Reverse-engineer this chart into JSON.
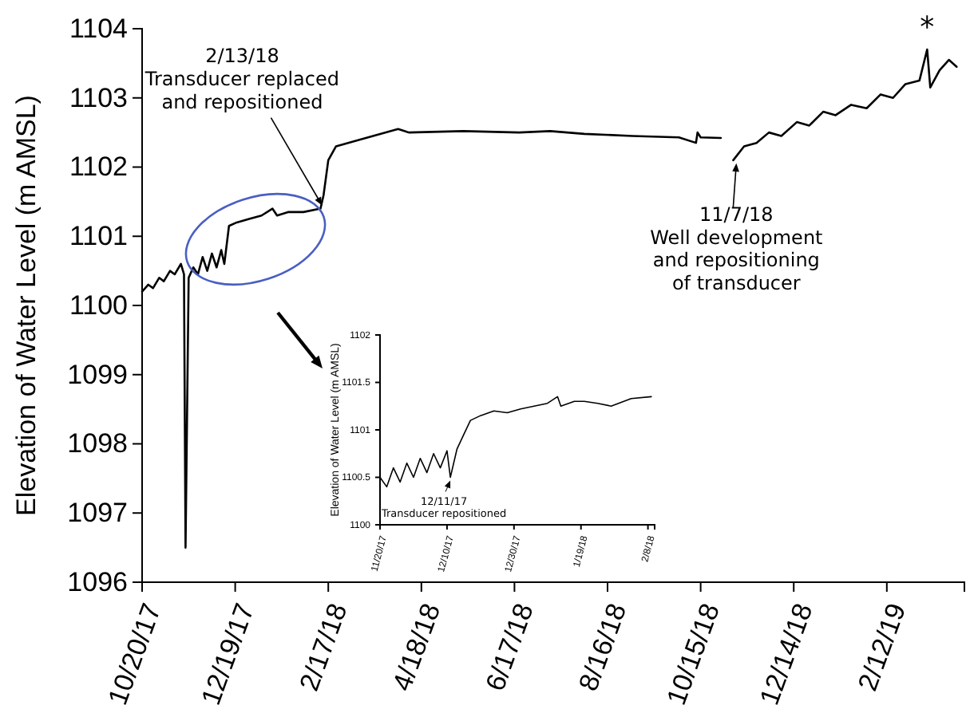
{
  "chart_data": [
    {
      "type": "line",
      "ylabel": "Elevation of Water Level (m AMSL)",
      "xlim": [
        "2017-10-20",
        "2019-04-03"
      ],
      "ylim": [
        1096,
        1104
      ],
      "xticks": [
        {
          "value": "2017-10-20",
          "label": "10/20/17"
        },
        {
          "value": "2017-12-19",
          "label": "12/19/17"
        },
        {
          "value": "2018-02-17",
          "label": "2/17/18"
        },
        {
          "value": "2018-04-18",
          "label": "4/18/18"
        },
        {
          "value": "2018-06-17",
          "label": "6/17/18"
        },
        {
          "value": "2018-08-16",
          "label": "8/16/18"
        },
        {
          "value": "2018-10-15",
          "label": "10/15/18"
        },
        {
          "value": "2018-12-14",
          "label": "12/14/18"
        },
        {
          "value": "2019-02-12",
          "label": "2/12/19"
        }
      ],
      "yticks": [
        1096,
        1097,
        1098,
        1099,
        1100,
        1101,
        1102,
        1103,
        1104
      ],
      "grid": false,
      "marker": "none",
      "line_style": "solid",
      "x": [
        "2017-10-20",
        "2017-10-24",
        "2017-10-27",
        "2017-10-31",
        "2017-11-03",
        "2017-11-07",
        "2017-11-10",
        "2017-11-14",
        "2017-11-16",
        "2017-11-17",
        "2017-11-19",
        "2017-11-22",
        "2017-11-25",
        "2017-11-28",
        "2017-12-01",
        "2017-12-04",
        "2017-12-07",
        "2017-12-10",
        "2017-12-12",
        "2017-12-15",
        "2017-12-20",
        "2017-12-28",
        "2018-01-05",
        "2018-01-12",
        "2018-01-15",
        "2018-01-22",
        "2018-02-01",
        "2018-02-12",
        "2018-02-14",
        "2018-02-17",
        "2018-02-22",
        "2018-03-10",
        "2018-04-03",
        "2018-04-10",
        "2018-05-15",
        "2018-06-20",
        "2018-07-10",
        "2018-08-01",
        "2018-09-01",
        "2018-10-01",
        "2018-10-12",
        "2018-10-13",
        "2018-10-15",
        "2018-10-28",
        "2018-11-01",
        "2018-11-05",
        "2018-11-12",
        "2018-11-20",
        "2018-11-28",
        "2018-12-06",
        "2018-12-16",
        "2018-12-24",
        "2019-01-02",
        "2019-01-10",
        "2019-01-20",
        "2019-01-30",
        "2019-02-08",
        "2019-02-16",
        "2019-02-24",
        "2019-03-05",
        "2019-03-10",
        "2019-03-12",
        "2019-03-18",
        "2019-03-24",
        "2019-03-29"
      ],
      "series": [
        {
          "color": "#000000",
          "values": [
            1100.2,
            1100.3,
            1100.25,
            1100.4,
            1100.35,
            1100.5,
            1100.45,
            1100.6,
            1100.45,
            1096.5,
            1100.4,
            1100.55,
            1100.45,
            1100.7,
            1100.5,
            1100.75,
            1100.55,
            1100.8,
            1100.6,
            1101.15,
            1101.2,
            1101.25,
            1101.3,
            1101.4,
            1101.3,
            1101.35,
            1101.35,
            1101.4,
            1101.6,
            1102.1,
            1102.3,
            1102.4,
            1102.55,
            1102.5,
            1102.52,
            1102.5,
            1102.52,
            1102.48,
            1102.45,
            1102.43,
            1102.35,
            1102.5,
            1102.43,
            1102.42,
            null,
            1102.1,
            1102.3,
            1102.35,
            1102.5,
            1102.45,
            1102.65,
            1102.6,
            1102.8,
            1102.75,
            1102.9,
            1102.85,
            1103.05,
            1103.0,
            1103.2,
            1103.25,
            1103.7,
            1103.15,
            1103.4,
            1103.55,
            1103.45
          ]
        }
      ],
      "annotations": [
        {
          "text": "2/13/18\nTransducer replaced\nand repositioned",
          "x": "2018-02-13",
          "y": 1101.4
        },
        {
          "text": "11/7/18\nWell development\nand repositioning\nof transducer",
          "x": "2018-11-07",
          "y": 1102.1
        },
        {
          "text": "*",
          "x": "2019-03-10",
          "y": 1103.7
        }
      ]
    },
    {
      "type": "line",
      "ylabel": "Elevation of Water Level (m AMSL)",
      "xlim": [
        "2017-11-20",
        "2018-02-10"
      ],
      "ylim": [
        1100,
        1102
      ],
      "xticks": [
        {
          "value": "2017-11-20",
          "label": "11/20/17"
        },
        {
          "value": "2017-12-10",
          "label": "12/10/17"
        },
        {
          "value": "2017-12-30",
          "label": "12/30/17"
        },
        {
          "value": "2018-01-19",
          "label": "1/19/18"
        },
        {
          "value": "2018-02-08",
          "label": "2/8/18"
        }
      ],
      "yticks": [
        1100,
        1100.5,
        1101,
        1101.5,
        1102
      ],
      "grid": false,
      "marker": "none",
      "line_style": "solid",
      "x": [
        "2017-11-20",
        "2017-11-22",
        "2017-11-24",
        "2017-11-26",
        "2017-11-28",
        "2017-11-30",
        "2017-12-02",
        "2017-12-04",
        "2017-12-06",
        "2017-12-08",
        "2017-12-10",
        "2017-12-11",
        "2017-12-13",
        "2017-12-15",
        "2017-12-17",
        "2017-12-20",
        "2017-12-24",
        "2017-12-28",
        "2018-01-01",
        "2018-01-05",
        "2018-01-09",
        "2018-01-12",
        "2018-01-13",
        "2018-01-17",
        "2018-01-20",
        "2018-01-24",
        "2018-01-28",
        "2018-02-03",
        "2018-02-09"
      ],
      "series": [
        {
          "color": "#000000",
          "values": [
            1100.5,
            1100.4,
            1100.6,
            1100.45,
            1100.65,
            1100.5,
            1100.7,
            1100.55,
            1100.75,
            1100.6,
            1100.78,
            1100.5,
            1100.8,
            1100.95,
            1101.1,
            1101.15,
            1101.2,
            1101.18,
            1101.22,
            1101.25,
            1101.28,
            1101.35,
            1101.25,
            1101.3,
            1101.3,
            1101.28,
            1101.25,
            1101.33,
            1101.35
          ]
        }
      ],
      "annotations": [
        {
          "text": "12/11/17\nTransducer repositioned",
          "x": "2017-12-11",
          "y": 1100.5
        }
      ]
    }
  ]
}
